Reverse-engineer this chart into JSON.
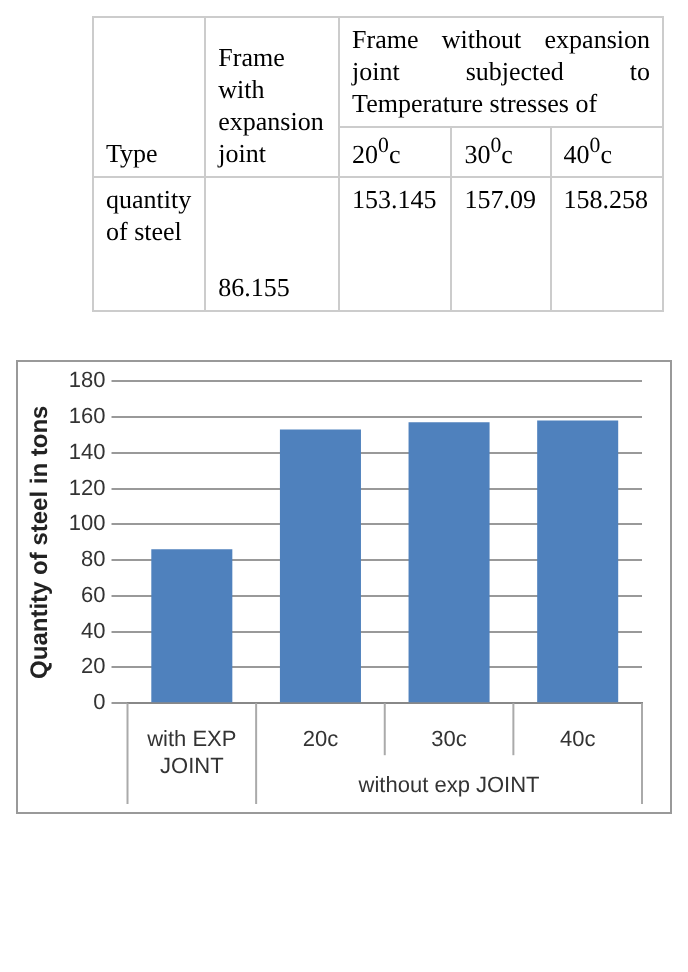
{
  "chart_data": {
    "type": "bar",
    "ylabel": "Quantity of steel in tons",
    "categories": [
      "with EXP JOINT",
      "20c",
      "30c",
      "40c"
    ],
    "values": [
      86,
      153,
      157,
      158
    ],
    "color": "#4f81bd",
    "ylim": [
      0,
      180
    ],
    "yticks": [
      0,
      20,
      40,
      60,
      80,
      100,
      120,
      140,
      160,
      180
    ],
    "grid": "y",
    "annotations": [
      "Type",
      "Frame with expansion joint",
      "Frame without expansion joint subjected to Temperature stresses of",
      "quantity of steel",
      "20$^{0}$c",
      "30$^{0}$c",
      "40$^{0}$c",
      "without exp JOINT",
      "86.155",
      "153.145",
      "157.09",
      "158.258"
    ]
  }
}
